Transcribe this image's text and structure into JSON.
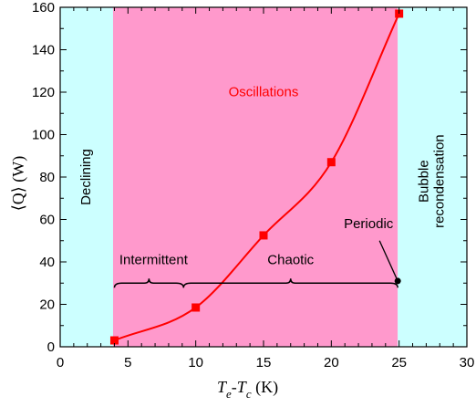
{
  "chart_data": {
    "type": "line",
    "xlim": [
      0,
      30
    ],
    "ylim": [
      0,
      160
    ],
    "x_ticks": [
      "0",
      "5",
      "10",
      "15",
      "20",
      "25",
      "30"
    ],
    "y_ticks": [
      "0",
      "20",
      "40",
      "60",
      "80",
      "100",
      "120",
      "140",
      "160"
    ],
    "xlabel": {
      "prefix": "T",
      "sub1": "e",
      "dash": "-",
      "main2": "T",
      "sub2": "c",
      "unit": " (K)"
    },
    "ylabel": "⟨Q⟩ (W)",
    "grid": false,
    "regions": [
      {
        "id": "declining",
        "label": "Declining",
        "x_range": [
          0,
          3.9
        ],
        "color": "#ccffff"
      },
      {
        "id": "oscillations",
        "label": "Oscillations",
        "x_range": [
          3.9,
          24.9
        ],
        "color": "#ff99cc"
      },
      {
        "id": "bubble",
        "label_line1": "Bubble",
        "label_line2": "recondensation",
        "x_range": [
          24.9,
          30
        ],
        "color": "#ccffff"
      }
    ],
    "series": [
      {
        "color": "#ff0000",
        "marker": "square",
        "x": [
          4,
          10,
          15,
          20,
          25
        ],
        "y": [
          3,
          18.5,
          52.5,
          87,
          157
        ]
      }
    ],
    "annotations": {
      "intermittent": {
        "label": "Intermittent",
        "x_range": [
          4,
          9.1
        ],
        "y": 30
      },
      "chaotic": {
        "label": "Chaotic",
        "x_range": [
          9.1,
          24.9
        ],
        "y": 30
      },
      "periodic": {
        "label": "Periodic",
        "x": 24.9,
        "y": 31
      }
    },
    "colors": {
      "series": "#ff0000",
      "label_red": "#ff0000",
      "axis": "#000000"
    }
  }
}
